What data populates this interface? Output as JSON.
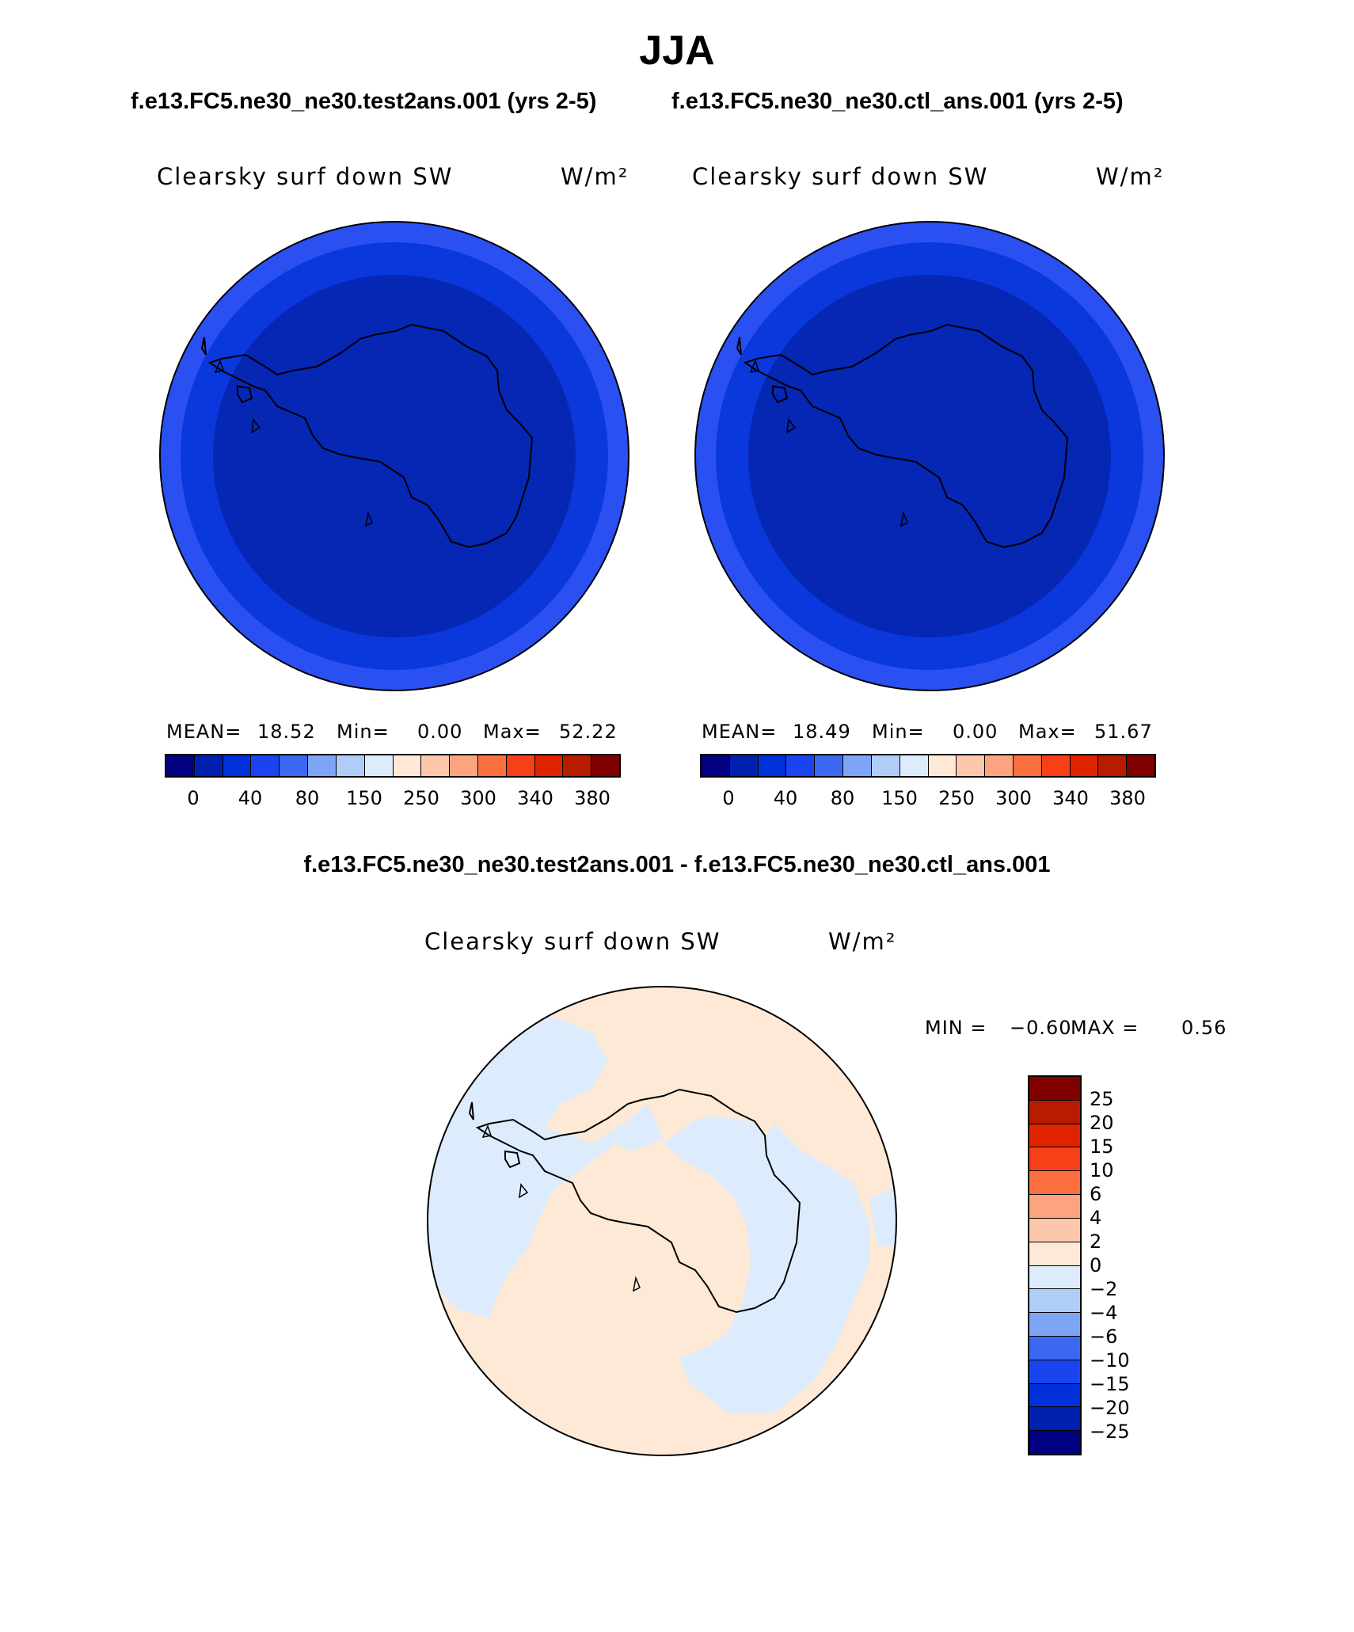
{
  "title": "JJA",
  "case_titles": {
    "test": "f.e13.FC5.ne30_ne30.test2ans.001 (yrs 2-5)",
    "ctl": "f.e13.FC5.ne30_ne30.ctl_ans.001 (yrs 2-5)"
  },
  "diff_title": "f.e13.FC5.ne30_ne30.test2ans.001 - f.e13.FC5.ne30_ne30.ctl_ans.001",
  "panels": {
    "test": {
      "label": "Clearsky surf down SW",
      "units": "W/m²",
      "stats": {
        "mean_label": "MEAN=",
        "mean": "18.52",
        "min_label": "Min=",
        "min": "0.00",
        "max_label": "Max=",
        "max": "52.22"
      }
    },
    "ctl": {
      "label": "Clearsky surf down SW",
      "units": "W/m²",
      "stats": {
        "mean_label": "MEAN=",
        "mean": "18.49",
        "min_label": "Min=",
        "min": "0.00",
        "max_label": "Max=",
        "max": "51.67"
      }
    },
    "diff": {
      "label": "Clearsky surf down SW",
      "units": "W/m²",
      "stats": {
        "min_label": "MIN =",
        "min": "−0.60",
        "max_label": "MAX =",
        "max": "0.56"
      }
    }
  },
  "colorbar_abs": {
    "colors": [
      "#000080",
      "#0020b0",
      "#0030d8",
      "#1a44f0",
      "#3a68f0",
      "#7ea4f6",
      "#b0cdf8",
      "#dcecfc",
      "#fde9d6",
      "#fcc7ab",
      "#fca480",
      "#fc7040",
      "#f73f18",
      "#e02400",
      "#b81c00",
      "#800000"
    ],
    "ticks": [
      "0",
      "40",
      "80",
      "150",
      "250",
      "300",
      "340",
      "380"
    ]
  },
  "colorbar_diff": {
    "colors": [
      "#000080",
      "#0020b0",
      "#0030d8",
      "#1a44f0",
      "#3a68f0",
      "#7ea4f6",
      "#b0cdf8",
      "#dcecfc",
      "#fde9d6",
      "#fcc7ab",
      "#fca480",
      "#fc7040",
      "#f73f18",
      "#e02400",
      "#b81c00",
      "#800000"
    ],
    "ticks": [
      "25",
      "20",
      "15",
      "10",
      "6",
      "4",
      "2",
      "0",
      "−2",
      "−4",
      "−6",
      "−10",
      "−15",
      "−20",
      "−25"
    ]
  },
  "map_colors": {
    "outer_ring": "#2a50f2",
    "mid_ring": "#0a38dc",
    "inner": "#0626b4",
    "diff_positive": "#fde9d6",
    "diff_negative": "#dcecfc"
  }
}
